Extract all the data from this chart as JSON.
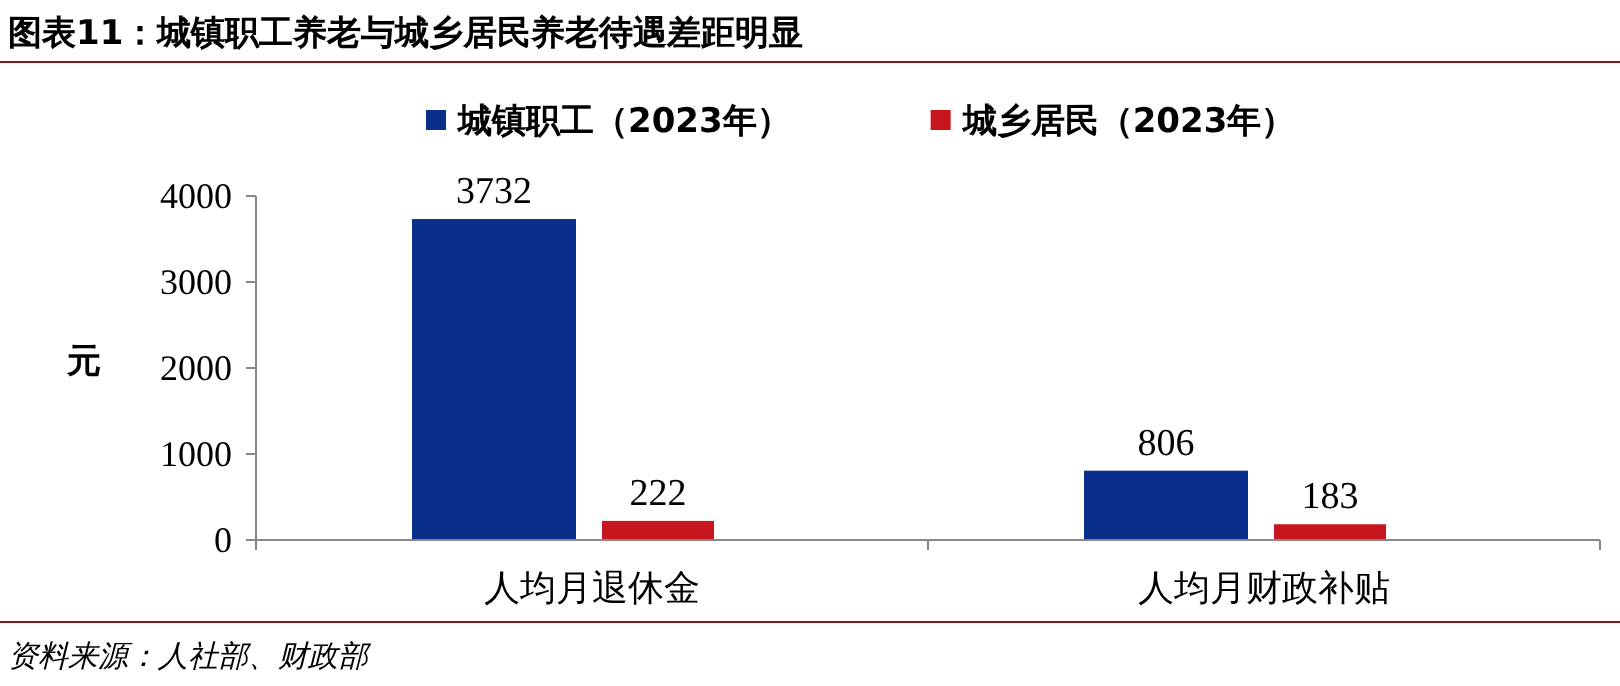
{
  "chart_data": {
    "type": "bar",
    "title": "图表11：城镇职工养老与城乡居民养老待遇差距明显",
    "categories": [
      "人均月退休金",
      "人均月财政补贴"
    ],
    "series": [
      {
        "name": "城镇职工（2023年）",
        "color": "#0a2f8a",
        "values": [
          3732,
          806
        ]
      },
      {
        "name": "城乡居民（2023年）",
        "color": "#c8161d",
        "values": [
          222,
          183
        ]
      }
    ],
    "ylabel": "元",
    "ylim": [
      0,
      4000
    ],
    "yticks": [
      0,
      1000,
      2000,
      3000,
      4000
    ],
    "data_labels": true,
    "legend": "top",
    "grid": false,
    "annotations": [
      "资料来源：人社部、财政部"
    ]
  }
}
